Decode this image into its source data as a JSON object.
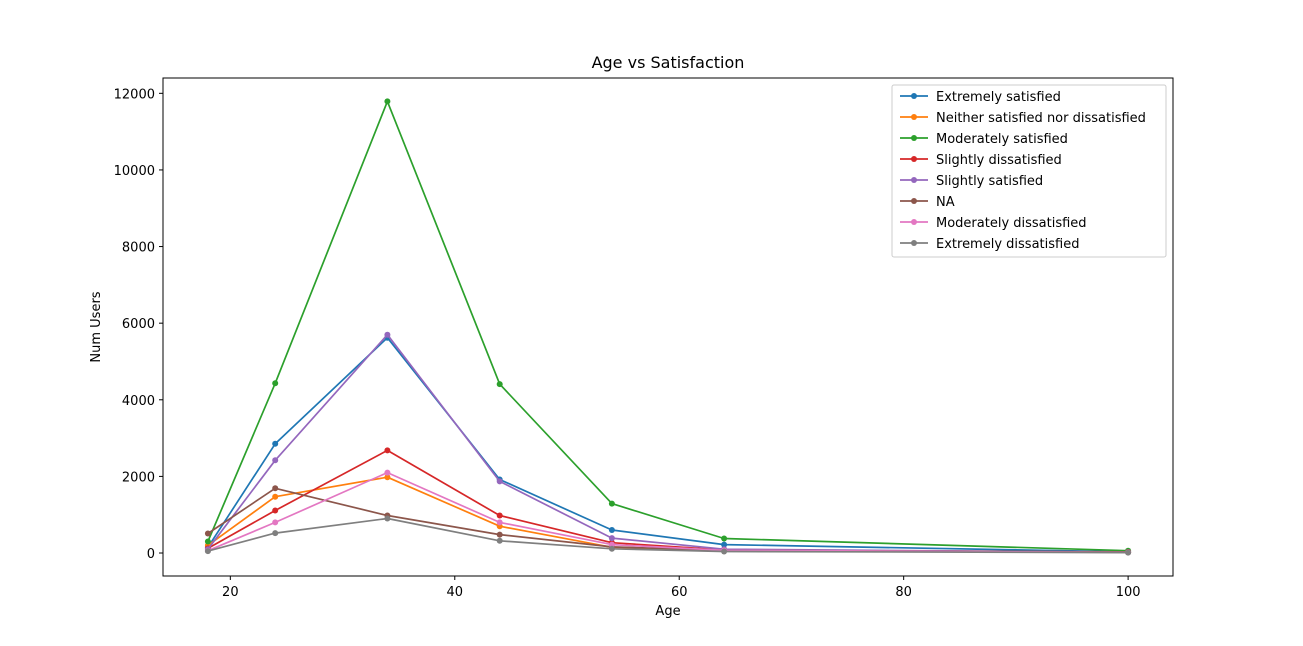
{
  "chart_data": {
    "type": "line",
    "title": "Age vs Satisfaction",
    "xlabel": "Age",
    "ylabel": "Num Users",
    "xlim": [
      14,
      104
    ],
    "ylim": [
      -600,
      12400
    ],
    "xticks": [
      20,
      40,
      60,
      80,
      100
    ],
    "yticks": [
      0,
      2000,
      4000,
      6000,
      8000,
      10000,
      12000
    ],
    "grid": false,
    "legend_position": "top-right",
    "x": [
      18,
      24,
      34,
      44,
      54,
      64,
      100
    ],
    "series": [
      {
        "name": "Extremely satisfied",
        "color": "#1f77b4",
        "values": [
          150,
          2850,
          5620,
          1920,
          600,
          220,
          30
        ]
      },
      {
        "name": "Neither satisfied nor dissatisfied",
        "color": "#ff7f0e",
        "values": [
          200,
          1470,
          1980,
          700,
          150,
          60,
          20
        ]
      },
      {
        "name": "Moderately satisfied",
        "color": "#2ca02c",
        "values": [
          300,
          4430,
          11790,
          4410,
          1290,
          380,
          60
        ]
      },
      {
        "name": "Slightly dissatisfied",
        "color": "#d62728",
        "values": [
          120,
          1110,
          2680,
          980,
          270,
          80,
          20
        ]
      },
      {
        "name": "Slightly satisfied",
        "color": "#9467bd",
        "values": [
          100,
          2420,
          5700,
          1870,
          390,
          100,
          20
        ]
      },
      {
        "name": "NA",
        "color": "#8c564b",
        "values": [
          510,
          1690,
          980,
          480,
          160,
          70,
          30
        ]
      },
      {
        "name": "Moderately dissatisfied",
        "color": "#e377c2",
        "values": [
          60,
          800,
          2100,
          800,
          220,
          70,
          15
        ]
      },
      {
        "name": "Extremely dissatisfied",
        "color": "#7f7f7f",
        "values": [
          50,
          520,
          900,
          320,
          110,
          40,
          10
        ]
      }
    ]
  }
}
